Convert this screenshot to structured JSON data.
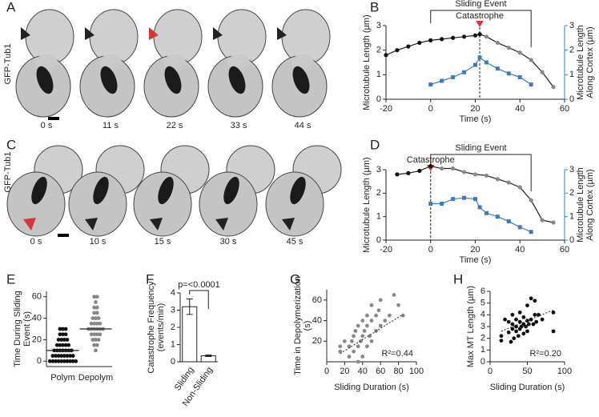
{
  "panel_labels": [
    "A",
    "B",
    "C",
    "D",
    "E",
    "F",
    "G",
    "H"
  ],
  "image_panels": [
    {
      "ylabel": "GFP-Tub1",
      "times": [
        "0 s",
        "11 s",
        "22 s",
        "33 s",
        "44 s"
      ]
    },
    {
      "ylabel": "GFP-Tub1",
      "times": [
        "0 s",
        "10 s",
        "15 s",
        "30 s",
        "45 s"
      ]
    }
  ],
  "chart_data": [
    {
      "type": "line",
      "xlabel": "Time (s)",
      "ylabel": "Microtubule Length (µm)",
      "y2label": [
        "Microtubule Length",
        "Along Cortex (µm)"
      ],
      "xlim": [
        -20,
        60
      ],
      "xticks": [
        -20,
        0,
        20,
        40,
        60
      ],
      "ylim": [
        0,
        3
      ],
      "yticks": [
        0,
        1,
        2,
        3
      ],
      "y2lim": [
        0,
        3
      ],
      "y2ticks": [
        0,
        1,
        2,
        3
      ],
      "y2color": "#3a7bbf",
      "event_label": "Sliding Event",
      "event_range": [
        0,
        45
      ],
      "catastrophe_label": "Catastrophe",
      "catastrophe_x": 22,
      "series": [
        {
          "color": "#1a1a1a",
          "marker": "circle",
          "x": [
            -20,
            -15,
            -10,
            -5,
            0,
            5,
            10,
            15,
            20,
            22,
            25,
            30,
            35,
            40,
            45,
            50,
            55
          ],
          "values": [
            1.8,
            2.0,
            2.15,
            2.3,
            2.4,
            2.45,
            2.5,
            2.55,
            2.6,
            2.65,
            2.55,
            2.3,
            2.1,
            1.9,
            1.6,
            1.1,
            0.5
          ],
          "marker_colors": [
            "#111",
            "#111",
            "#111",
            "#111",
            "#111",
            "#111",
            "#111",
            "#111",
            "#111",
            "#111",
            "#888",
            "#888",
            "#888",
            "#888",
            "#888",
            "#888",
            "#888"
          ]
        },
        {
          "color": "#3a7bbf",
          "marker": "square",
          "axis": "y2",
          "x": [
            0,
            5,
            10,
            15,
            20,
            22,
            25,
            30,
            35,
            40,
            45
          ],
          "values": [
            0.6,
            0.75,
            0.9,
            1.1,
            1.4,
            1.7,
            1.5,
            1.25,
            1.05,
            0.9,
            0.6
          ]
        }
      ]
    },
    {
      "type": "line",
      "xlabel": "Time (s)",
      "ylabel": "Microtubule Length (µm)",
      "y2label": [
        "Microtubule Length",
        "Along Cortex (µm)"
      ],
      "xlim": [
        -20,
        60
      ],
      "xticks": [
        -20,
        0,
        20,
        40,
        60
      ],
      "ylim": [
        0,
        3
      ],
      "yticks": [
        0,
        1,
        2,
        3
      ],
      "y2lim": [
        0,
        3
      ],
      "y2ticks": [
        0,
        1,
        2,
        3
      ],
      "y2color": "#3a7bbf",
      "event_label": "Sliding Event",
      "event_range": [
        0,
        45
      ],
      "catastrophe_label": "Catastrophe",
      "catastrophe_x": 0,
      "series": [
        {
          "color": "#1a1a1a",
          "marker": "circle",
          "x": [
            -15,
            -10,
            -5,
            0,
            5,
            10,
            15,
            20,
            25,
            30,
            35,
            40,
            45,
            50,
            55
          ],
          "values": [
            2.8,
            2.85,
            2.95,
            3.15,
            3.05,
            3.05,
            2.9,
            2.8,
            2.75,
            2.6,
            2.45,
            2.25,
            1.7,
            0.85,
            0.75
          ],
          "marker_colors": [
            "#111",
            "#111",
            "#111",
            "#111",
            "#888",
            "#888",
            "#888",
            "#888",
            "#888",
            "#888",
            "#888",
            "#888",
            "#888",
            "#888",
            "#888"
          ]
        },
        {
          "color": "#3a7bbf",
          "marker": "square",
          "axis": "y2",
          "x": [
            0,
            5,
            10,
            15,
            20,
            22,
            25,
            30,
            35,
            40,
            45
          ],
          "values": [
            1.55,
            1.55,
            1.75,
            1.8,
            1.75,
            1.4,
            1.15,
            1.0,
            0.8,
            0.55,
            0.35
          ]
        }
      ]
    },
    {
      "type": "strip",
      "ylabel": [
        "Time During Sliding",
        "Event (s)"
      ],
      "ylim": [
        -5,
        65
      ],
      "yticks": [
        0,
        20,
        40,
        60
      ],
      "categories": [
        "Polym",
        "Depolym"
      ],
      "colors": [
        "#111",
        "#888"
      ],
      "medians": [
        10,
        30
      ],
      "values": [
        [
          0,
          0,
          0,
          0,
          0,
          0,
          0,
          0,
          0,
          0,
          5,
          5,
          5,
          5,
          5,
          5,
          5,
          5,
          10,
          10,
          10,
          10,
          10,
          10,
          10,
          15,
          15,
          15,
          15,
          15,
          20,
          20,
          20,
          20,
          25,
          25,
          25,
          30,
          30,
          30
        ],
        [
          10,
          15,
          15,
          20,
          20,
          20,
          25,
          25,
          25,
          25,
          30,
          30,
          30,
          30,
          30,
          30,
          35,
          35,
          35,
          35,
          40,
          40,
          40,
          45,
          45,
          50,
          50,
          55,
          60,
          60
        ]
      ]
    },
    {
      "type": "bar",
      "ylabel": [
        "Catastrophe Frequency",
        "(events/min)"
      ],
      "ylim": [
        0,
        4
      ],
      "yticks": [
        0,
        1,
        2,
        3,
        4
      ],
      "categories": [
        "Sliding",
        "Non-Sliding"
      ],
      "values": [
        3.2,
        0.35
      ],
      "errors": [
        0.45,
        0.05
      ],
      "annotation": "p=<0.0001"
    },
    {
      "type": "scatter",
      "xlabel": "Sliding Duration (s)",
      "ylabel": [
        "Time in Depolymerization",
        "(s)"
      ],
      "color": "#888",
      "xlim": [
        0,
        100
      ],
      "xticks": [
        0,
        20,
        40,
        60,
        80,
        100
      ],
      "ylim": [
        0,
        70
      ],
      "yticks": [
        20,
        40,
        60
      ],
      "annotation": "R²=0.44",
      "x": [
        15,
        15,
        20,
        25,
        25,
        28,
        30,
        30,
        32,
        35,
        35,
        35,
        38,
        40,
        40,
        40,
        42,
        45,
        45,
        45,
        48,
        50,
        50,
        50,
        55,
        55,
        58,
        60,
        60,
        65,
        70,
        75,
        80,
        85
      ],
      "values": [
        10,
        15,
        20,
        5,
        15,
        20,
        10,
        25,
        30,
        0,
        15,
        35,
        20,
        5,
        25,
        40,
        30,
        15,
        35,
        45,
        25,
        20,
        40,
        55,
        30,
        45,
        50,
        35,
        60,
        40,
        45,
        65,
        55,
        45
      ],
      "trendline": {
        "x": [
          15,
          85
        ],
        "y": [
          8,
          46
        ]
      }
    },
    {
      "type": "scatter",
      "xlabel": "Sliding Duration (s)",
      "ylabel": "Max MT Length (µm)",
      "color": "#111",
      "xlim": [
        0,
        100
      ],
      "xticks": [
        0,
        50,
        100
      ],
      "ylim": [
        0,
        6
      ],
      "yticks": [
        0,
        1,
        2,
        3,
        4,
        5,
        6
      ],
      "annotation": "R²=0.20",
      "x": [
        15,
        15,
        20,
        25,
        25,
        28,
        30,
        30,
        30,
        32,
        35,
        35,
        35,
        38,
        40,
        40,
        40,
        42,
        45,
        45,
        45,
        48,
        50,
        50,
        50,
        52,
        55,
        55,
        58,
        60,
        60,
        62,
        65,
        70,
        85,
        85
      ],
      "values": [
        1.8,
        2.2,
        3.6,
        2.5,
        3.4,
        1.7,
        2.8,
        3.2,
        4.0,
        2.0,
        2.6,
        3.0,
        3.6,
        2.2,
        2.8,
        3.4,
        4.2,
        3.0,
        2.4,
        3.2,
        3.8,
        3.0,
        2.6,
        3.5,
        4.8,
        3.2,
        3.6,
        5.4,
        3.2,
        4.0,
        5.2,
        3.4,
        4.0,
        3.6,
        2.6,
        4.2
      ],
      "trendline": {
        "x": [
          15,
          85
        ],
        "y": [
          2.6,
          4.4
        ]
      }
    }
  ]
}
